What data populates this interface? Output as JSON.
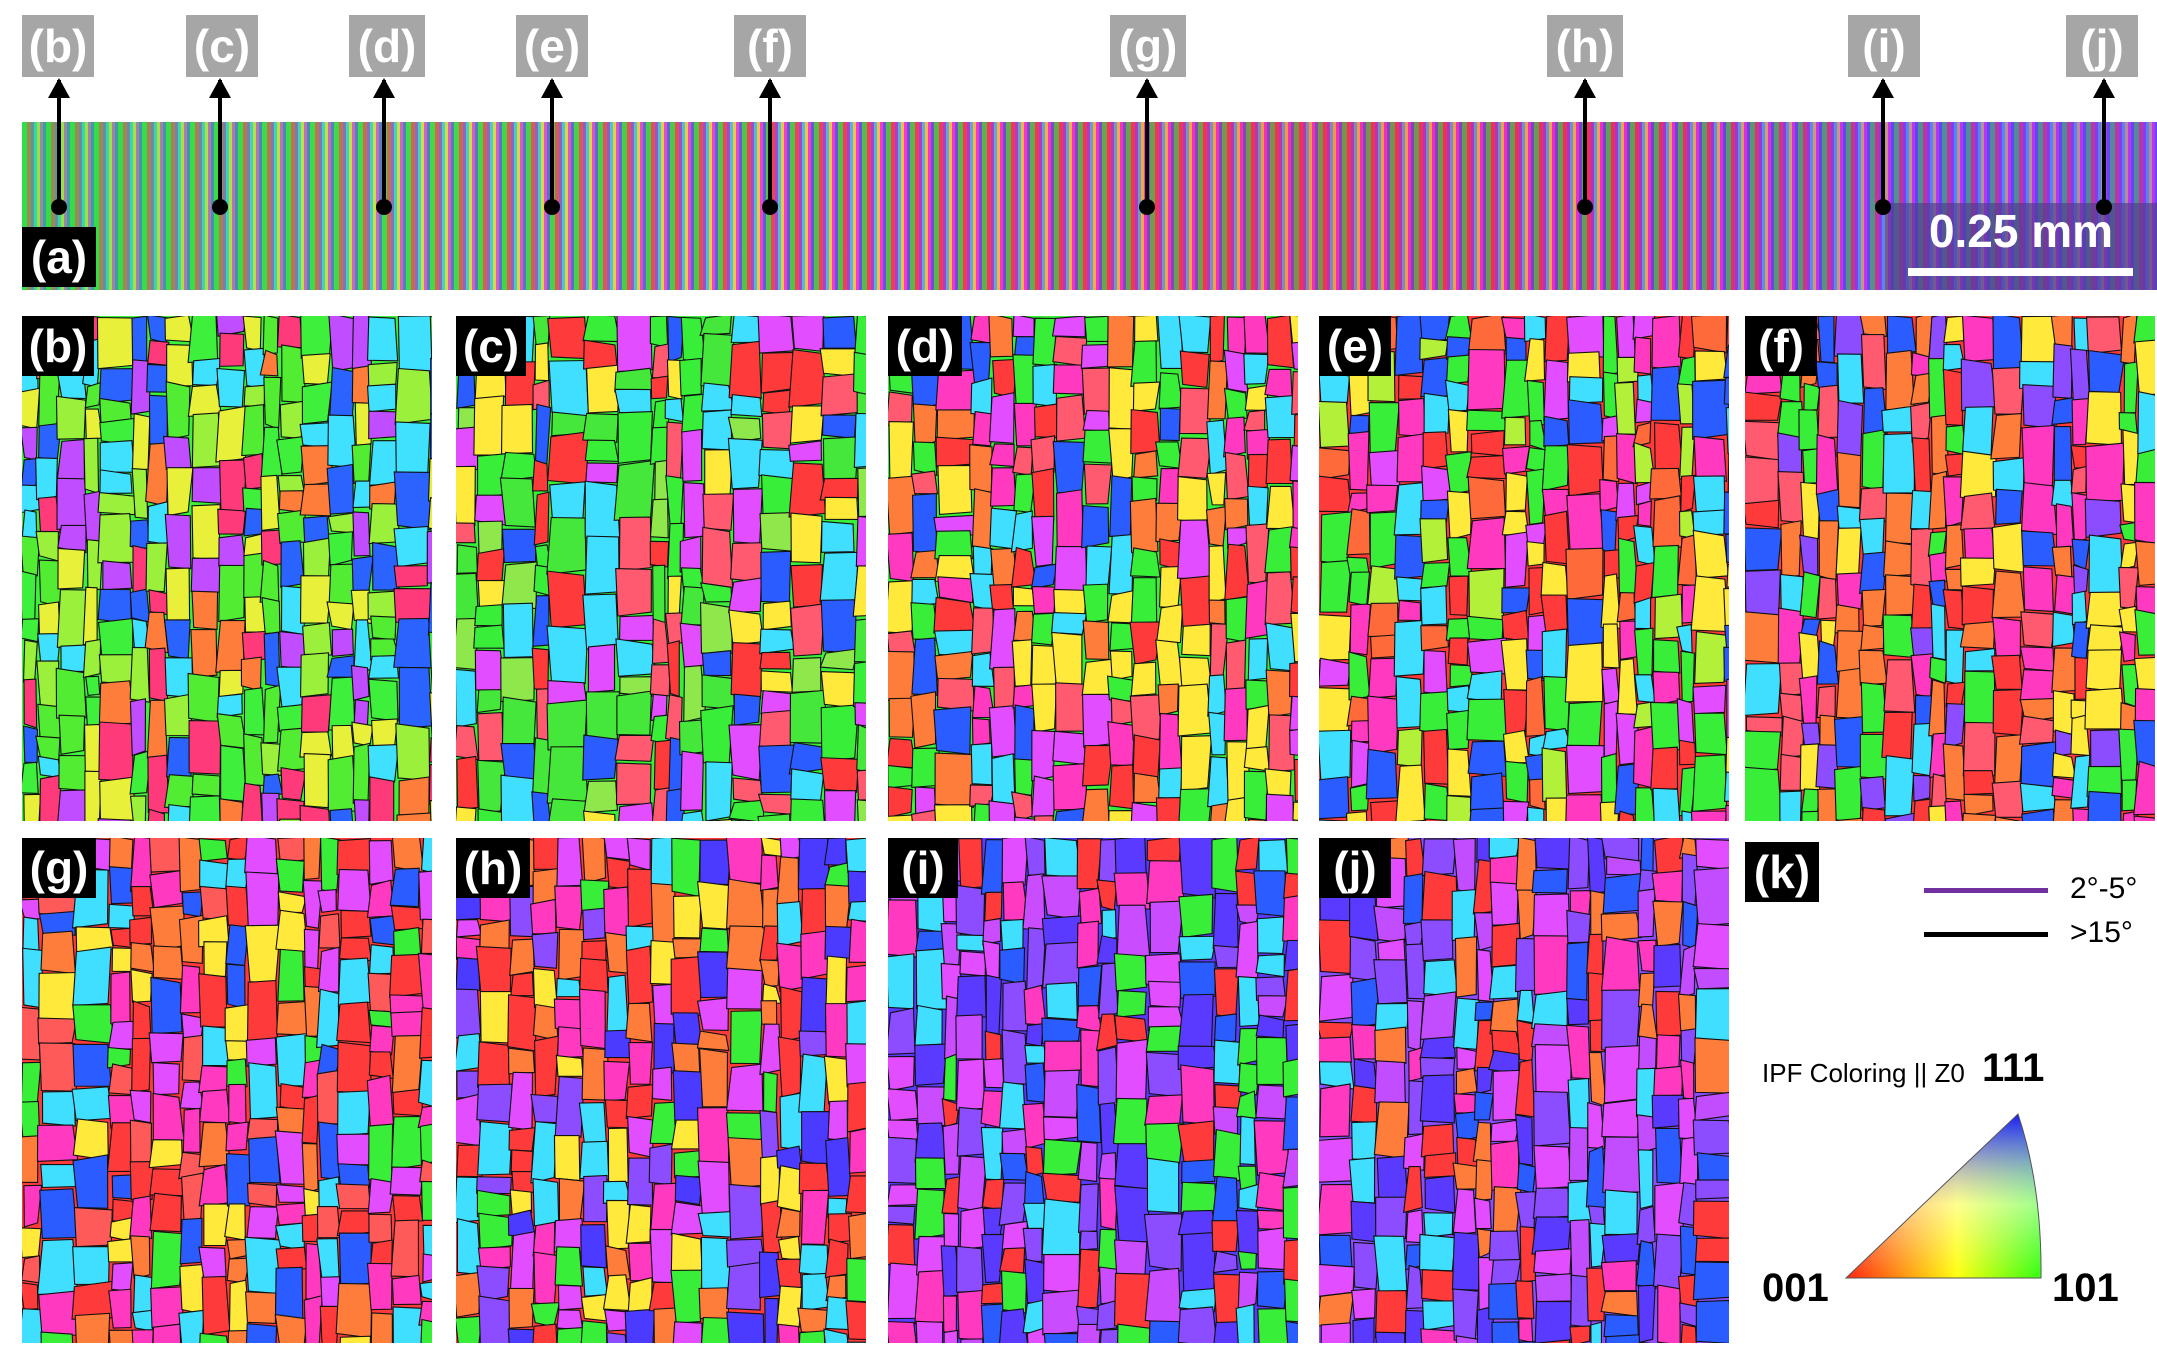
{
  "top_tags": [
    "(b)",
    "(c)",
    "(d)",
    "(e)",
    "(f)",
    "(g)",
    "(h)",
    "(i)",
    "(j)"
  ],
  "strip_label": "(a)",
  "scale_bar": "0.25 mm",
  "panels": [
    {
      "label": "(b)",
      "palette": [
        "#3ef03c",
        "#52ec33",
        "#9af03a",
        "#e9f03a",
        "#ff7d3a",
        "#ff3a7a",
        "#c04dff",
        "#40e0ff",
        "#2b63ff"
      ]
    },
    {
      "label": "(c)",
      "palette": [
        "#39ee39",
        "#45e83a",
        "#8ee84b",
        "#ff5a70",
        "#ff3a3a",
        "#e14dff",
        "#40dfff",
        "#2b5cff",
        "#ffe93a"
      ]
    },
    {
      "label": "(d)",
      "palette": [
        "#39ee39",
        "#ff3a3a",
        "#ff5a70",
        "#ff7d3a",
        "#e14dff",
        "#40dfff",
        "#2b5cff",
        "#ffe93a",
        "#ff3ac0"
      ]
    },
    {
      "label": "(e)",
      "palette": [
        "#ff3a3a",
        "#ff6a3a",
        "#39ee39",
        "#b2f03a",
        "#ffe93a",
        "#e14dff",
        "#40dfff",
        "#2b5cff",
        "#ff3ac0"
      ]
    },
    {
      "label": "(f)",
      "palette": [
        "#ff3a3a",
        "#ff3ac0",
        "#8b4dff",
        "#39ee39",
        "#ffe93a",
        "#ff7d3a",
        "#40dfff",
        "#2b5cff",
        "#ff5a70"
      ]
    },
    {
      "label": "(g)",
      "palette": [
        "#ff3a3a",
        "#ff5a5a",
        "#39ee39",
        "#ffe93a",
        "#e14dff",
        "#40dfff",
        "#2b5cff",
        "#ff7d3a",
        "#ff3ac0"
      ]
    },
    {
      "label": "(h)",
      "palette": [
        "#ff3a3a",
        "#ff3ac0",
        "#8b4dff",
        "#4b3aff",
        "#39ee39",
        "#ffe93a",
        "#ff7d3a",
        "#40dfff",
        "#e14dff"
      ]
    },
    {
      "label": "(i)",
      "palette": [
        "#5b3aff",
        "#8b4dff",
        "#e14dff",
        "#ff3ac0",
        "#ff3a3a",
        "#2b5cff",
        "#40dfff",
        "#39ee39",
        "#c94dff"
      ]
    },
    {
      "label": "(j)",
      "palette": [
        "#8b4dff",
        "#c24dff",
        "#e14dff",
        "#ff3ac0",
        "#5b3aff",
        "#2b5cff",
        "#40dfff",
        "#ff3a3a",
        "#ff7d3a"
      ]
    }
  ],
  "legend": {
    "label": "(k)",
    "low_angle": "2°-5°",
    "low_angle_color": "#7030a0",
    "high_angle": ">15°",
    "high_angle_color": "#000000",
    "ipf_title": "IPF Coloring || Z0",
    "pole_111": "111",
    "pole_001": "001",
    "pole_101": "101"
  }
}
